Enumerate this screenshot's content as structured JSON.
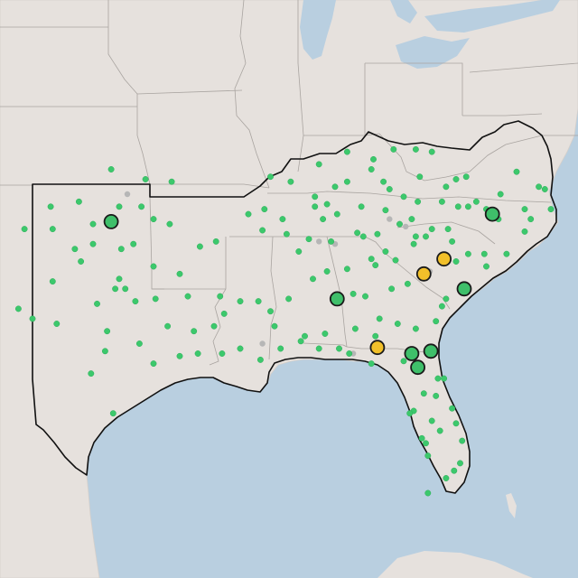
{
  "map": {
    "colors": {
      "land": "#e6e1dd",
      "water": "#b9cfe0",
      "state_border": "#a9a4a0",
      "region_outline": "#111111",
      "dot_small": "#3cc86c",
      "dot_small_stroke": "#2fae5a",
      "dot_gray": "#b6b6b6",
      "marker_green": "#3fbf6a",
      "marker_yellow": "#f2c02a",
      "marker_stroke": "#1a1a1a"
    },
    "legend_categories": [
      "green",
      "yellow",
      "gray"
    ],
    "markers": [
      {
        "id": "ok-city",
        "lon": -97.5,
        "lat": 35.5,
        "category": "green"
      },
      {
        "id": "nc-raleigh",
        "lon": -78.6,
        "lat": 35.8,
        "category": "green"
      },
      {
        "id": "sc-columbia",
        "lon": -81.0,
        "lat": 34.0,
        "category": "yellow"
      },
      {
        "id": "ga-augusta",
        "lon": -82.0,
        "lat": 33.4,
        "category": "yellow"
      },
      {
        "id": "sc-charleston",
        "lon": -80.0,
        "lat": 32.8,
        "category": "green"
      },
      {
        "id": "al-montgomery",
        "lon": -86.3,
        "lat": 32.4,
        "category": "green"
      },
      {
        "id": "fl-jacksonville",
        "lon": -81.65,
        "lat": 30.3,
        "category": "green"
      },
      {
        "id": "fl-tallahassee",
        "lon": -84.3,
        "lat": 30.45,
        "category": "yellow"
      },
      {
        "id": "fl-lakecity",
        "lon": -82.6,
        "lat": 30.2,
        "category": "green"
      },
      {
        "id": "fl-gainesville",
        "lon": -82.3,
        "lat": 29.65,
        "category": "green"
      }
    ],
    "dots": [
      [
        -97.5,
        37.6
      ],
      [
        -95.8,
        37.2
      ],
      [
        -100.5,
        36.1
      ],
      [
        -99.1,
        36.3
      ],
      [
        -98.4,
        35.4
      ],
      [
        -97.1,
        36.1
      ],
      [
        -96.0,
        36.1
      ],
      [
        -95.4,
        35.6
      ],
      [
        -94.6,
        35.4
      ],
      [
        -96.4,
        34.6
      ],
      [
        -97.0,
        34.4
      ],
      [
        -98.4,
        34.6
      ],
      [
        -99.3,
        34.4
      ],
      [
        -100.4,
        35.2
      ],
      [
        -101.8,
        35.2
      ],
      [
        -100.4,
        33.1
      ],
      [
        -97.3,
        32.8
      ],
      [
        -96.8,
        32.8
      ],
      [
        -97.8,
        30.3
      ],
      [
        -98.5,
        29.4
      ],
      [
        -97.4,
        27.8
      ],
      [
        -95.4,
        29.8
      ],
      [
        -94.1,
        30.1
      ],
      [
        -93.2,
        30.2
      ],
      [
        -92.0,
        30.2
      ],
      [
        -91.1,
        30.4
      ],
      [
        -90.1,
        29.95
      ],
      [
        -89.1,
        30.4
      ],
      [
        -88.1,
        30.7
      ],
      [
        -87.2,
        30.4
      ],
      [
        -86.2,
        30.4
      ],
      [
        -85.7,
        30.2
      ],
      [
        -84.3,
        30.45
      ],
      [
        -84.6,
        29.8
      ],
      [
        -82.5,
        27.9
      ],
      [
        -81.4,
        28.5
      ],
      [
        -80.6,
        28.0
      ],
      [
        -80.1,
        26.7
      ],
      [
        -80.2,
        25.8
      ],
      [
        -81.8,
        26.1
      ],
      [
        -81.9,
        26.6
      ],
      [
        -82.1,
        26.8
      ],
      [
        -82.7,
        27.8
      ],
      [
        -81.3,
        29.2
      ],
      [
        -81.0,
        29.2
      ],
      [
        -81.7,
        30.3
      ],
      [
        -81.1,
        32.1
      ],
      [
        -80.9,
        32.4
      ],
      [
        -79.9,
        32.8
      ],
      [
        -78.9,
        33.7
      ],
      [
        -79.0,
        34.2
      ],
      [
        -77.9,
        34.2
      ],
      [
        -77.0,
        35.1
      ],
      [
        -76.7,
        35.6
      ],
      [
        -75.7,
        36.0
      ],
      [
        -76.3,
        36.9
      ],
      [
        -77.4,
        37.5
      ],
      [
        -78.2,
        36.6
      ],
      [
        -78.9,
        36.0
      ],
      [
        -79.8,
        36.1
      ],
      [
        -80.3,
        36.1
      ],
      [
        -80.8,
        35.2
      ],
      [
        -81.6,
        35.2
      ],
      [
        -82.6,
        35.6
      ],
      [
        -83.9,
        35.96
      ],
      [
        -84.3,
        35.0
      ],
      [
        -85.3,
        35.05
      ],
      [
        -86.8,
        36.2
      ],
      [
        -87.4,
        36.5
      ],
      [
        -88.6,
        37.1
      ],
      [
        -89.6,
        37.3
      ],
      [
        -85.8,
        38.3
      ],
      [
        -84.5,
        38.0
      ],
      [
        -83.5,
        38.4
      ],
      [
        -82.4,
        38.4
      ],
      [
        -81.6,
        38.3
      ],
      [
        -79.9,
        37.3
      ],
      [
        -80.4,
        37.2
      ],
      [
        -82.2,
        37.3
      ],
      [
        -84.6,
        37.6
      ],
      [
        -85.8,
        37.1
      ],
      [
        -86.4,
        36.9
      ],
      [
        -87.2,
        37.8
      ],
      [
        -90.0,
        35.15
      ],
      [
        -89.0,
        35.6
      ],
      [
        -90.7,
        35.8
      ],
      [
        -92.3,
        34.7
      ],
      [
        -93.1,
        34.5
      ],
      [
        -94.1,
        33.4
      ],
      [
        -93.7,
        32.5
      ],
      [
        -92.1,
        32.5
      ],
      [
        -91.1,
        32.3
      ],
      [
        -90.2,
        32.3
      ],
      [
        -89.4,
        31.3
      ],
      [
        -88.7,
        32.4
      ],
      [
        -87.5,
        33.2
      ],
      [
        -86.8,
        33.5
      ],
      [
        -85.8,
        33.6
      ],
      [
        -86.6,
        34.7
      ],
      [
        -87.7,
        34.8
      ],
      [
        -88.2,
        34.3
      ],
      [
        -84.4,
        33.75
      ],
      [
        -83.4,
        33.95
      ],
      [
        -83.6,
        32.8
      ],
      [
        -84.9,
        32.5
      ],
      [
        -84.2,
        31.6
      ],
      [
        -83.3,
        31.4
      ],
      [
        -82.4,
        31.2
      ],
      [
        -81.4,
        31.5
      ],
      [
        -85.4,
        31.2
      ],
      [
        -86.9,
        31.0
      ],
      [
        -87.9,
        30.9
      ],
      [
        -82.5,
        34.6
      ],
      [
        -81.9,
        34.9
      ],
      [
        -82.4,
        34.9
      ],
      [
        -80.6,
        34.7
      ],
      [
        -79.8,
        34.2
      ],
      [
        -80.4,
        33.9
      ],
      [
        -83.0,
        36.5
      ],
      [
        -86.3,
        35.8
      ],
      [
        -85.1,
        36.1
      ],
      [
        -87.0,
        35.6
      ],
      [
        -88.8,
        35.0
      ],
      [
        -89.9,
        36.0
      ],
      [
        -94.5,
        37.1
      ],
      [
        -96.3,
        32.3
      ],
      [
        -95.3,
        32.4
      ],
      [
        -94.7,
        31.3
      ],
      [
        -96.1,
        30.6
      ],
      [
        -97.7,
        31.1
      ],
      [
        -98.2,
        32.2
      ],
      [
        -102.1,
        32.0
      ],
      [
        -101.4,
        31.6
      ],
      [
        -100.2,
        31.4
      ],
      [
        -99.0,
        33.9
      ],
      [
        -95.4,
        33.7
      ],
      [
        -97.1,
        33.2
      ],
      [
        -93.4,
        31.1
      ],
      [
        -92.4,
        31.3
      ],
      [
        -91.9,
        31.8
      ],
      [
        -89.6,
        31.9
      ],
      [
        -85.5,
        32.6
      ],
      [
        -84.4,
        30.9
      ],
      [
        -83.0,
        29.9
      ],
      [
        -82.0,
        28.6
      ],
      [
        -81.6,
        27.5
      ],
      [
        -81.2,
        27.1
      ],
      [
        -80.4,
        27.4
      ],
      [
        -80.5,
        25.5
      ],
      [
        -81.8,
        24.6
      ],
      [
        -80.9,
        25.2
      ],
      [
        -82.8,
        33.0
      ],
      [
        -83.9,
        34.3
      ],
      [
        -84.6,
        34.0
      ],
      [
        -85.0,
        34.9
      ],
      [
        -83.2,
        35.4
      ],
      [
        -82.3,
        36.3
      ],
      [
        -81.1,
        36.3
      ],
      [
        -78.3,
        35.6
      ],
      [
        -77.0,
        36.0
      ],
      [
        -76.0,
        36.8
      ],
      [
        -79.4,
        36.3
      ],
      [
        -80.9,
        36.9
      ],
      [
        -83.7,
        36.8
      ],
      [
        -87.4,
        36.1
      ],
      [
        -84.0,
        37.1
      ]
    ],
    "gray_dots": [
      [
        -96.7,
        36.6
      ],
      [
        -83.7,
        35.6
      ],
      [
        -81.7,
        33.5
      ],
      [
        -86.4,
        34.6
      ],
      [
        -85.5,
        30.2
      ],
      [
        -87.2,
        34.7
      ],
      [
        -90.0,
        30.6
      ],
      [
        -82.9,
        35.3
      ]
    ]
  }
}
